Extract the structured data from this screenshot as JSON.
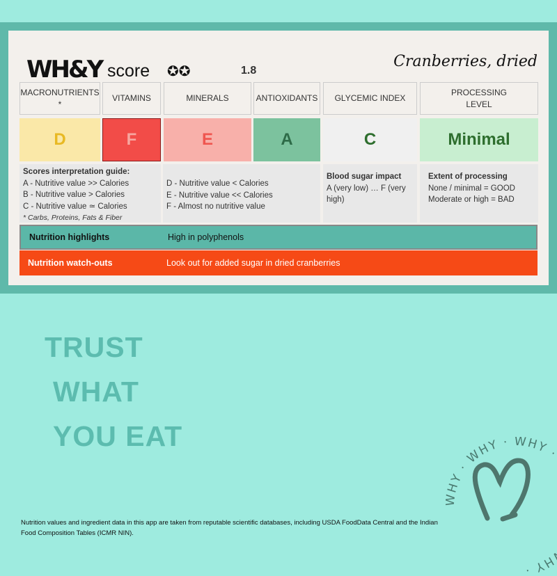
{
  "header": {
    "brand": "WH&Y",
    "score_label": "score",
    "stars": "✪✪",
    "score_value": "1.8",
    "food": "Cranberries, dried"
  },
  "columns": [
    {
      "label": "MACRONUTRIENTS\n*",
      "grade": "D",
      "bg": "#fae8a8",
      "fg": "#e8b923"
    },
    {
      "label": "VITAMINS",
      "grade": "F",
      "bg": "#f24c48",
      "fg": "#f7a7a0"
    },
    {
      "label": "MINERALS",
      "grade": "E",
      "bg": "#f8b0aa",
      "fg": "#ef5650"
    },
    {
      "label": "ANTIOXIDANTS",
      "grade": "A",
      "bg": "#7cc29e",
      "fg": "#2e6b48"
    },
    {
      "label": "GLYCEMIC INDEX",
      "grade": "C",
      "bg": "#f0f0f0",
      "fg": "#2e6e2e"
    },
    {
      "label": "PROCESSING\nLEVEL",
      "grade": "Minimal",
      "bg": "#c8eed0",
      "fg": "#2e6e2e"
    }
  ],
  "guide": {
    "title": "Scores interpretation guide:",
    "left": [
      "A - Nutritive value >> Calories",
      "B - Nutritive value > Calories",
      "C - Nutritive value ≃ Calories"
    ],
    "footnote": "* Carbs, Proteins, Fats & Fiber",
    "right": [
      "D - Nutritive value < Calories",
      "E - Nutritive value << Calories",
      "F - Almost no nutritive value"
    ],
    "gi_title": "Blood sugar impact",
    "gi_text": "A (very low) … F (very high)",
    "proc_title": "Extent of processing",
    "proc_lines": [
      "None / minimal = GOOD",
      "Moderate or high = BAD"
    ]
  },
  "highlights": {
    "label": "Nutrition highlights",
    "value": "High in polyphenols",
    "color": "#5bb7a8"
  },
  "watchouts": {
    "label": "Nutrition watch-outs",
    "value": "Look out for added sugar in dried cranberries",
    "color": "#f64a16"
  },
  "slogan": [
    "TRUST",
    "WHAT",
    "YOU EAT"
  ],
  "footer": "Nutrition values and ingredient data in this app are taken from reputable scientific databases, including USDA FoodData Central and the Indian Food Composition Tables (ICMR NIN).",
  "badge": {
    "text": "WHY · WHY · WHY · WHY · WHY · WHY · ",
    "icon": "heart-icon"
  }
}
